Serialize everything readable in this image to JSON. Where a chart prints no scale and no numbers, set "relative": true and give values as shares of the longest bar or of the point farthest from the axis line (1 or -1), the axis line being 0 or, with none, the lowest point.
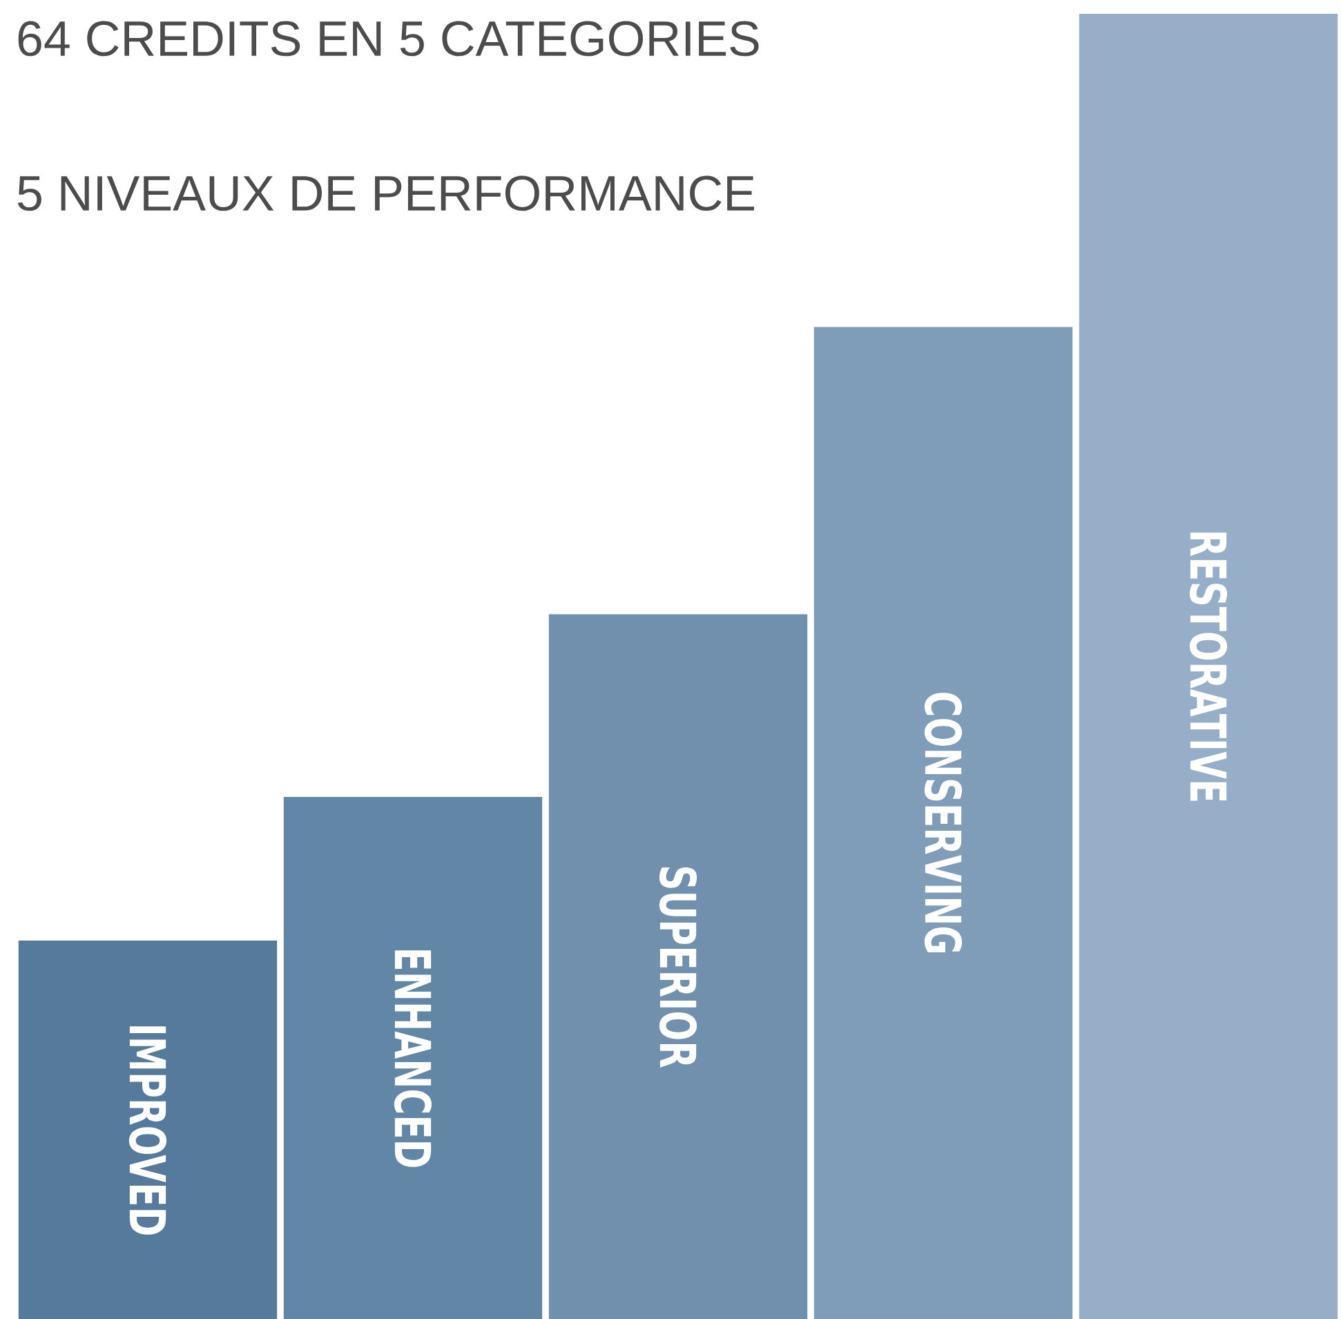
{
  "chart_data": {
    "type": "bar",
    "title": "64 CREDITS EN 5 CATEGORIES",
    "subtitle": "5 NIVEAUX DE PERFORMANCE",
    "relative": true,
    "categories": [
      "IMPROVED",
      "ENHANCED",
      "SUPERIOR",
      "CONSERVING",
      "RESTORATIVE"
    ],
    "values": [
      0.29,
      0.4,
      0.54,
      0.76,
      1
    ],
    "colors": [
      "#557a9c",
      "#6186a6",
      "#7090ae",
      "#7f9cb9",
      "#96aec7"
    ]
  }
}
